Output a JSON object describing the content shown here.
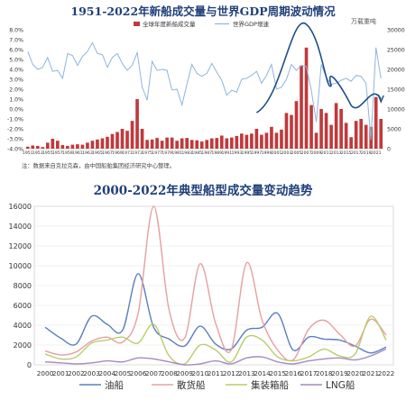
{
  "chart_top": {
    "title": "1951-2022年新船成交量与世界GDP周期波动情况",
    "right_axis_unit": "万载重吨",
    "note": "注：数据来自克拉克森，由中国船舶集团经济研究中心整理。",
    "legend": {
      "bars": "全球年度新船成交量",
      "line": "世界GDP增速"
    },
    "colors": {
      "bars": "#c0393b",
      "line": "#8fb4dd",
      "trend": "#1e4f8a"
    },
    "chart_data": {
      "type": "bar",
      "left_axis": {
        "ylim": [
          -4.0,
          8.0
        ],
        "ticks": [
          "-4.0%",
          "-3.0%",
          "-2.0%",
          "-1.0%",
          "0.0%",
          "1.0%",
          "2.0%",
          "3.0%",
          "4.0%",
          "5.0%",
          "6.0%",
          "7.0%",
          "8.0%"
        ]
      },
      "right_axis": {
        "ylim": [
          0,
          30000
        ],
        "ticks": [
          "0",
          "5000",
          "10000",
          "15000",
          "20000",
          "25000",
          "30000"
        ]
      },
      "x_tick_labels": [
        "1951",
        "1953",
        "1955",
        "1957",
        "1959",
        "1961",
        "1963",
        "1965",
        "1967",
        "1969",
        "1971",
        "1973",
        "1975",
        "1977",
        "1979",
        "1981",
        "1983",
        "1985",
        "1987",
        "1989",
        "1991",
        "1993",
        "1995",
        "1997",
        "1999",
        "2001",
        "2003",
        "2005",
        "2007",
        "2009",
        "2011",
        "2013",
        "2015",
        "2017",
        "2019",
        "2021"
      ],
      "years": [
        1951,
        1952,
        1953,
        1954,
        1955,
        1956,
        1957,
        1958,
        1959,
        1960,
        1961,
        1962,
        1963,
        1964,
        1965,
        1966,
        1967,
        1968,
        1969,
        1970,
        1971,
        1972,
        1973,
        1974,
        1975,
        1976,
        1977,
        1978,
        1979,
        1980,
        1981,
        1982,
        1983,
        1984,
        1985,
        1986,
        1987,
        1988,
        1989,
        1990,
        1991,
        1992,
        1993,
        1994,
        1995,
        1996,
        1997,
        1998,
        1999,
        2000,
        2001,
        2002,
        2003,
        2004,
        2005,
        2006,
        2007,
        2008,
        2009,
        2010,
        2011,
        2012,
        2013,
        2014,
        2015,
        2016,
        2017,
        2018,
        2019,
        2020,
        2021,
        2022
      ],
      "series": [
        {
          "name": "全球年度新船成交量",
          "axis": "right",
          "values": [
            500,
            800,
            700,
            400,
            1500,
            2500,
            2000,
            900,
            700,
            1000,
            1100,
            1000,
            1500,
            2000,
            2300,
            2600,
            3000,
            3700,
            4200,
            5000,
            4500,
            7000,
            12500,
            5000,
            2200,
            2300,
            2700,
            2000,
            2800,
            2800,
            2000,
            2600,
            2700,
            2200,
            2100,
            1800,
            2200,
            2600,
            2700,
            3300,
            2600,
            2800,
            3200,
            3800,
            3500,
            3800,
            5000,
            3500,
            4000,
            5500,
            4000,
            4800,
            9000,
            8500,
            12000,
            21000,
            25500,
            11000,
            4000,
            10000,
            9000,
            6000,
            11500,
            10000,
            6500,
            2900,
            7000,
            7500,
            6000,
            5500,
            13000,
            7500
          ]
        },
        {
          "name": "世界GDP增速",
          "axis": "left",
          "values": [
            5.8,
            4.5,
            4.0,
            4.2,
            5.2,
            3.8,
            3.9,
            3.1,
            5.6,
            5.4,
            4.4,
            5.3,
            5.8,
            6.7,
            5.6,
            5.5,
            4.2,
            5.2,
            5.6,
            4.6,
            3.9,
            4.4,
            5.7,
            2.2,
            0.9,
            4.8,
            3.9,
            4.0,
            3.9,
            1.9,
            2.0,
            0.4,
            2.5,
            4.5,
            3.6,
            3.3,
            3.6,
            4.6,
            3.7,
            2.9,
            1.4,
            1.9,
            1.7,
            3.0,
            3.1,
            3.4,
            3.8,
            2.6,
            3.4,
            4.5,
            2.0,
            2.2,
            3.0,
            4.5,
            3.9,
            4.4,
            4.3,
            1.9,
            -1.3,
            4.5,
            3.2,
            2.5,
            2.6,
            2.9,
            3.1,
            2.8,
            3.4,
            3.3,
            2.6,
            -3.1,
            6.2,
            3.1
          ]
        }
      ]
    }
  },
  "chart_bottom": {
    "title": "2000-2022年典型船型成交量变动趋势",
    "legend": [
      "油船",
      "散货船",
      "集装箱船",
      "LNG船"
    ],
    "chart_data": {
      "type": "line",
      "x": [
        2000,
        2001,
        2002,
        2003,
        2004,
        2005,
        2006,
        2007,
        2008,
        2009,
        2010,
        2011,
        2012,
        2013,
        2014,
        2015,
        2016,
        2017,
        2018,
        2019,
        2020,
        2021,
        2022
      ],
      "ylim": [
        0,
        16000
      ],
      "yticks": [
        0,
        2000,
        4000,
        6000,
        8000,
        10000,
        12000,
        14000,
        16000
      ],
      "series": [
        {
          "name": "油船",
          "color": "#5b7fbe",
          "values": [
            3800,
            2700,
            2100,
            4900,
            4100,
            3500,
            9200,
            3800,
            2600,
            1900,
            3900,
            2100,
            1600,
            3500,
            3800,
            5200,
            1500,
            2800,
            2600,
            2500,
            1900,
            1200,
            1800
          ]
        },
        {
          "name": "散货船",
          "color": "#e6a0a0",
          "values": [
            1400,
            1000,
            1300,
            2400,
            2800,
            2300,
            5200,
            16000,
            5500,
            2700,
            10200,
            4200,
            1500,
            10300,
            4500,
            1500,
            500,
            3600,
            4500,
            3100,
            1900,
            4600,
            3000
          ]
        },
        {
          "name": "集装箱船",
          "color": "#b9cc6d",
          "values": [
            1100,
            600,
            800,
            2200,
            2500,
            2800,
            2200,
            4100,
            900,
            100,
            2000,
            1500,
            300,
            2800,
            2500,
            800,
            400,
            800,
            1600,
            900,
            1100,
            4900,
            2500
          ]
        },
        {
          "name": "LNG船",
          "color": "#a48ac2",
          "values": [
            300,
            200,
            100,
            200,
            400,
            300,
            700,
            600,
            300,
            0,
            100,
            400,
            100,
            700,
            800,
            300,
            100,
            400,
            600,
            700,
            500,
            900,
            1600
          ]
        }
      ]
    }
  }
}
